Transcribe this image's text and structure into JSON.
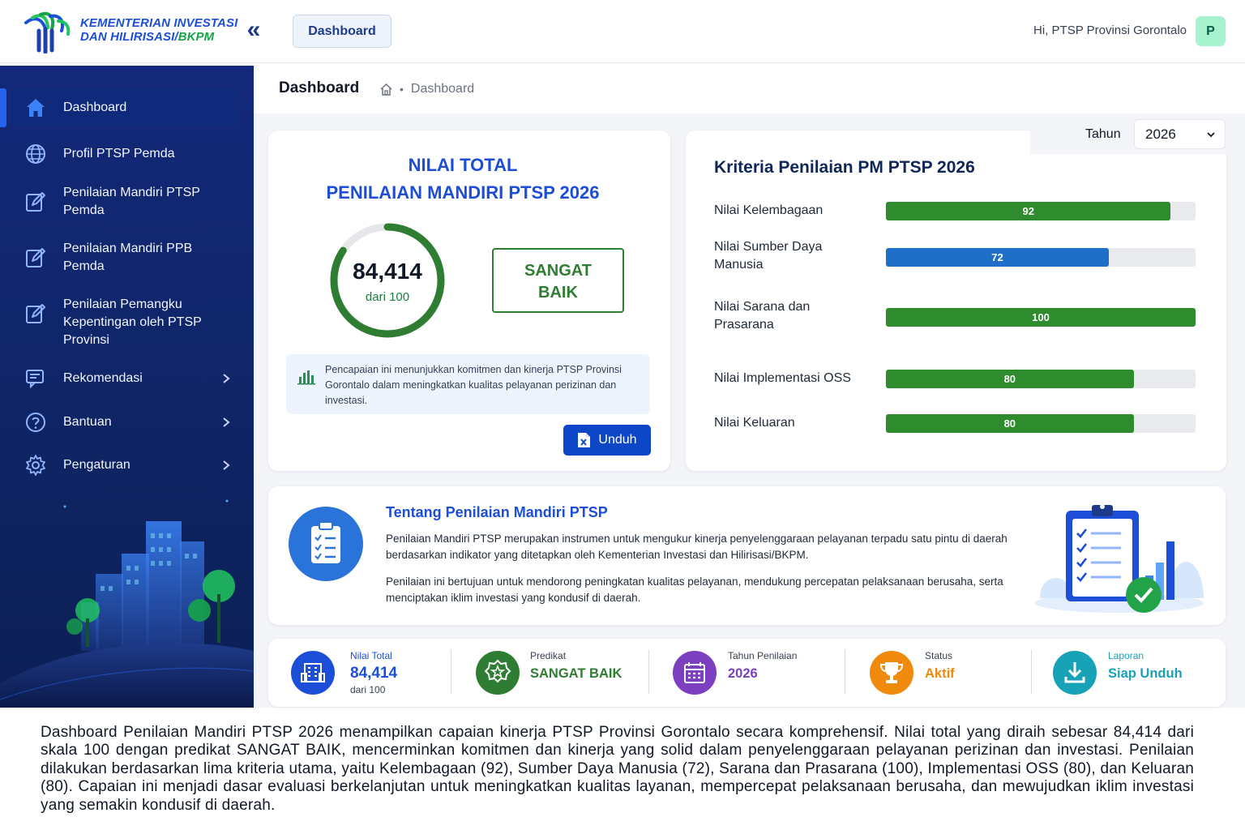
{
  "header": {
    "logo_line1": "KEMENTERIAN INVESTASI",
    "logo_line2_a": "DAN HILIRISASI/",
    "logo_line2_b": "BKPM",
    "collapse_glyph": "«",
    "tab_label": "Dashboard",
    "greeting": "Hi, PTSP Provinsi Gorontalo",
    "avatar_initial": "P"
  },
  "sidebar": {
    "items": [
      {
        "label": "Dashboard",
        "icon": "home-icon",
        "active": true
      },
      {
        "label": "Profil PTSP Pemda",
        "icon": "globe-icon"
      },
      {
        "label": "Penilaian Mandiri PTSP Pemda",
        "icon": "edit-icon"
      },
      {
        "label": "Penilaian Mandiri PPB Pemda",
        "icon": "edit-icon"
      },
      {
        "label": "Penilaian Pemangku Kepentingan oleh PTSP Provinsi",
        "icon": "edit-icon"
      },
      {
        "label": "Rekomendasi",
        "icon": "chat-icon",
        "has_submenu": true
      },
      {
        "label": "Bantuan",
        "icon": "help-icon",
        "has_submenu": true
      },
      {
        "label": "Pengaturan",
        "icon": "gear-icon",
        "has_submenu": true
      }
    ]
  },
  "page": {
    "title": "Dashboard",
    "breadcrumb": "Dashboard"
  },
  "score_card": {
    "title_line1": "NILAI TOTAL",
    "title_line2": "PENILAIAN MANDIRI PTSP 2026",
    "value": "84,414",
    "scale": "dari 100",
    "gauge_fraction": 0.84414,
    "predikat_line1": "SANGAT",
    "predikat_line2": "BAIK",
    "info": "Pencapaian ini menunjukkan komitmen dan kinerja PTSP Provinsi Gorontalo dalam meningkatkan kualitas pelayanan perizinan dan investasi.",
    "download_label": "Unduh"
  },
  "criteria_card": {
    "year_label": "Tahun",
    "year_value": "2026",
    "title": "Kriteria Penilaian PM PTSP 2026",
    "max": 100,
    "items": [
      {
        "label": "Nilai Kelembagaan",
        "value": 92,
        "color": "#2e8b2e"
      },
      {
        "label": "Nilai Sumber Daya Manusia",
        "value": 72,
        "color": "#1f6fc9"
      },
      {
        "label": "Nilai Sarana dan Prasarana",
        "value": 100,
        "color": "#2e8b2e"
      },
      {
        "label": "Nilai Implementasi OSS",
        "value": 80,
        "color": "#2e8b2e"
      },
      {
        "label": "Nilai Keluaran",
        "value": 80,
        "color": "#2e8b2e"
      }
    ]
  },
  "about": {
    "title": "Tentang Penilaian Mandiri PTSP",
    "p1": "Penilaian Mandiri PTSP merupakan instrumen untuk mengukur kinerja penyelenggaraan pelayanan terpadu satu pintu di daerah berdasarkan indikator yang ditetapkan oleh Kementerian Investasi dan Hilirisasi/BKPM.",
    "p2": "Penilaian ini bertujuan untuk mendorong peningkatan kualitas pelayanan, mendukung percepatan pelaksanaan berusaha, serta menciptakan iklim investasi yang kondusif di daerah."
  },
  "stats": [
    {
      "caption": "Nilai Total",
      "value": "84,414",
      "sub": "dari 100",
      "color": "#1d4ed8",
      "icon": "building-icon"
    },
    {
      "caption": "Predikat",
      "value": "SANGAT BAIK",
      "color": "#2e7d32",
      "icon": "badge-star-icon"
    },
    {
      "caption": "Tahun Penilaian",
      "value": "2026",
      "color": "#7b3fbf",
      "icon": "calendar-icon"
    },
    {
      "caption": "Status",
      "value": "Aktif",
      "color": "#f08a0c",
      "icon": "trophy-icon"
    },
    {
      "caption": "Laporan",
      "value": "Siap Unduh",
      "color": "#17a2b8",
      "icon": "download-icon"
    }
  ],
  "summary": "Dashboard Penilaian Mandiri PTSP 2026 menampilkan capaian kinerja PTSP Provinsi Gorontalo secara komprehensif. Nilai total yang diraih sebesar 84,414 dari skala 100 dengan predikat SANGAT BAIK, mencerminkan komitmen dan kinerja yang solid dalam penyelenggaraan pelayanan perizinan dan investasi. Penilaian dilakukan berdasarkan lima kriteria utama, yaitu Kelembagaan (92), Sumber Daya Manusia (72), Sarana dan Prasarana (100), Implementasi OSS (80), dan Keluaran (80). Capaian ini menjadi dasar evaluasi berkelanjutan untuk meningkatkan kualitas layanan, mempercepat pelaksanaan berusaha, dan mewujudkan iklim investasi yang semakin kondusif di daerah."
}
